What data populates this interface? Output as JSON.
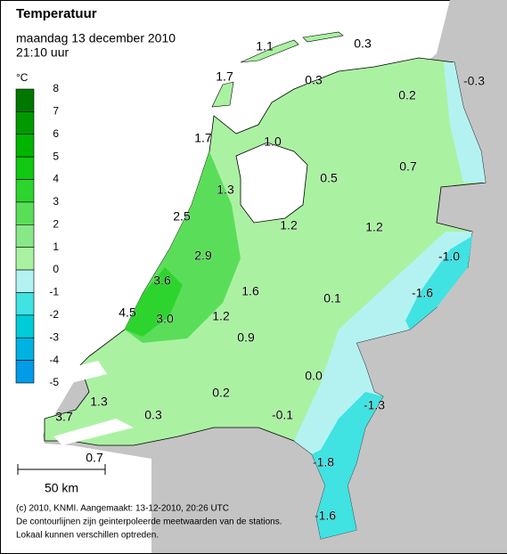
{
  "header": {
    "title": "Temperatuur",
    "subtitle": "maandag 13 december 2010",
    "time": "21:10 uur"
  },
  "legend": {
    "unit": "°C",
    "labels": [
      8,
      7,
      6,
      5,
      4,
      3,
      2,
      1,
      0,
      -1,
      -2,
      -3,
      -4,
      -5
    ],
    "colors": [
      "#007800",
      "#009a00",
      "#00b400",
      "#10c810",
      "#2ed42e",
      "#5ade5a",
      "#88e888",
      "#aaf2a2",
      "#b4f2f2",
      "#40e2e2",
      "#00ccd8",
      "#00b2e2",
      "#009ce8"
    ]
  },
  "stations": [
    {
      "label": "1.1"
    },
    {
      "label": "0.3"
    },
    {
      "label": "1.7"
    },
    {
      "label": "0.3"
    },
    {
      "label": "0.2"
    },
    {
      "label": "-0.3"
    },
    {
      "label": "1.7"
    },
    {
      "label": "1.0"
    },
    {
      "label": "0.7"
    },
    {
      "label": "1.3"
    },
    {
      "label": "0.5"
    },
    {
      "label": "2.5"
    },
    {
      "label": "1.2"
    },
    {
      "label": "1.2"
    },
    {
      "label": "-1.0"
    },
    {
      "label": "2.9"
    },
    {
      "label": "3.6"
    },
    {
      "label": "1.6"
    },
    {
      "label": "0.1"
    },
    {
      "label": "-1.6"
    },
    {
      "label": "4.5"
    },
    {
      "label": "3.0"
    },
    {
      "label": "1.2"
    },
    {
      "label": "0.9"
    },
    {
      "label": "0.0"
    },
    {
      "label": "0.2"
    },
    {
      "label": "1.3"
    },
    {
      "label": "-1.3"
    },
    {
      "label": "0.3"
    },
    {
      "label": "-0.1"
    },
    {
      "label": "3.7"
    },
    {
      "label": "-1.8"
    },
    {
      "label": "0.7"
    },
    {
      "label": "-1.6"
    }
  ],
  "scale_bar": "50 km",
  "footer": [
    "(c) 2010, KNMI. Aangemaakt: 13-12-2010, 20:26 UTC",
    "De contourlijnen zijn geinterpoleerde meetwaarden van de stations.",
    "Lokaal kunnen verschillen optreden."
  ]
}
